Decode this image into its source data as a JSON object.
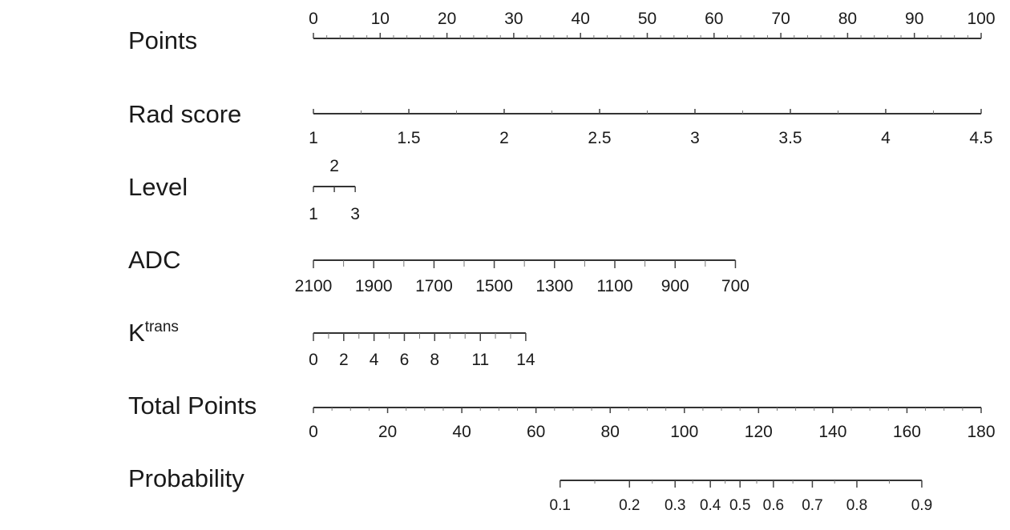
{
  "chart_data": {
    "type": "nomogram",
    "colors": {
      "line": "#333333",
      "text": "#1a1a1a",
      "background": "#ffffff"
    },
    "rows": [
      {
        "key": "points",
        "label": "Points",
        "ticks": [
          "0",
          "10",
          "20",
          "30",
          "40",
          "50",
          "60",
          "70",
          "80",
          "90",
          "100"
        ],
        "points": [
          0,
          10,
          20,
          30,
          40,
          50,
          60,
          70,
          80,
          90,
          100
        ]
      },
      {
        "key": "rad_score",
        "label": "Rad score",
        "ticks": [
          "1",
          "1.5",
          "2",
          "2.5",
          "3",
          "3.5",
          "4",
          "4.5"
        ],
        "points": [
          0,
          14.29,
          28.57,
          42.86,
          57.14,
          71.43,
          85.71,
          100
        ]
      },
      {
        "key": "level",
        "label": "Level",
        "ticks": [
          "1",
          "2",
          "3"
        ],
        "points": [
          0,
          3.13,
          6.26
        ]
      },
      {
        "key": "adc",
        "label": "ADC",
        "ticks": [
          "2100",
          "1900",
          "1700",
          "1500",
          "1300",
          "1100",
          "900",
          "700"
        ],
        "points": [
          0,
          9.03,
          18.06,
          27.08,
          36.11,
          45.14,
          54.17,
          63.2
        ]
      },
      {
        "key": "ktrans",
        "label": "K",
        "label_sup": "trans",
        "ticks": [
          "0",
          "2",
          "4",
          "6",
          "8",
          "11",
          "14"
        ],
        "points": [
          0,
          4.54,
          9.08,
          13.62,
          18.16,
          25.0,
          31.8
        ]
      },
      {
        "key": "total_points",
        "label": "Total Points",
        "ticks": [
          "0",
          "20",
          "40",
          "60",
          "80",
          "100",
          "120",
          "140",
          "160",
          "180"
        ],
        "values": [
          0,
          20,
          40,
          60,
          80,
          100,
          120,
          140,
          160,
          180
        ]
      },
      {
        "key": "probability",
        "label": "Probability",
        "ticks": [
          "0.1",
          "0.2",
          "0.3",
          "0.4",
          "0.5",
          "0.6",
          "0.7",
          "0.8",
          "0.9"
        ],
        "total_points": [
          66.5,
          85.2,
          97.5,
          107.0,
          115.0,
          124.0,
          134.5,
          146.5,
          164.0
        ]
      }
    ]
  }
}
